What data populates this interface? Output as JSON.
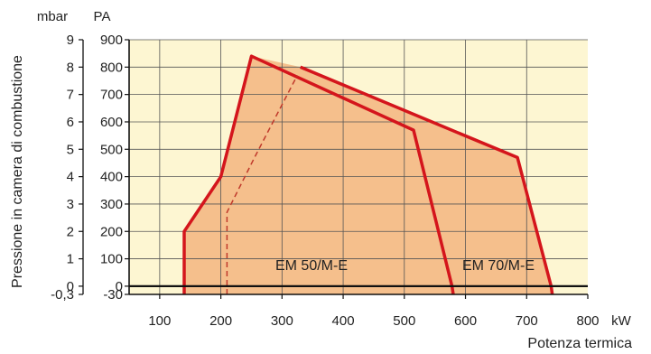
{
  "chart_data": {
    "type": "area",
    "xlabel": "Potenza termica",
    "xunit": "kW",
    "ylabel": "Pressione in camera di combustione",
    "yunit_left": "mbar",
    "yunit_right": "PA",
    "xlim": [
      50,
      800
    ],
    "ylim": [
      -30,
      900
    ],
    "x_ticks": [
      100,
      200,
      300,
      400,
      500,
      600,
      700,
      800
    ],
    "y_ticks_pa": [
      900,
      800,
      700,
      600,
      500,
      400,
      300,
      200,
      100,
      0,
      -30
    ],
    "y_ticks_mbar": [
      "9",
      "8",
      "7",
      "6",
      "5",
      "4",
      "3",
      "2",
      "1",
      "0",
      "-0,3"
    ],
    "grid": true,
    "colors": {
      "plot_background": "#fdf6d2",
      "region_fill": "#f5bf8c",
      "curve": "#d4151c",
      "dashed": "#c0392b",
      "grid": "#555555"
    },
    "series": [
      {
        "name": "EM 50/M-E",
        "points": [
          [
            140,
            -30
          ],
          [
            140,
            200
          ],
          [
            200,
            400
          ],
          [
            250,
            840
          ],
          [
            515,
            570
          ],
          [
            578,
            0
          ],
          [
            580,
            -30
          ]
        ],
        "min_curve": [
          [
            210,
            -30
          ],
          [
            210,
            270
          ],
          [
            255,
            470
          ],
          [
            325,
            770
          ]
        ]
      },
      {
        "name": "EM 70/M-E",
        "points": [
          [
            330,
            800
          ],
          [
            685,
            470
          ],
          [
            740,
            0
          ],
          [
            742,
            -30
          ]
        ]
      }
    ]
  }
}
